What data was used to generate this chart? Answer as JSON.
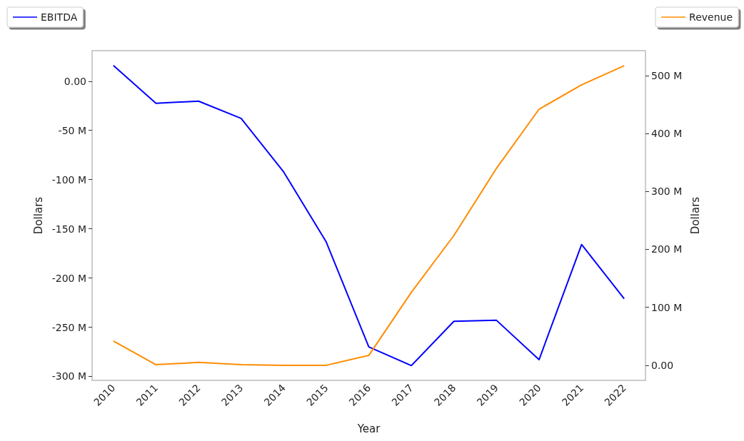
{
  "chart_data": {
    "type": "line",
    "xlabel": "Year",
    "ylabel": "Dollars",
    "y2label": "Dollars",
    "categories": [
      "2010",
      "2011",
      "2012",
      "2013",
      "2014",
      "2015",
      "2016",
      "2017",
      "2018",
      "2019",
      "2020",
      "2021",
      "2022"
    ],
    "series": [
      {
        "name": "EBITDA",
        "color": "#0000ff",
        "values": [
          16,
          -22.5,
          -20.3,
          -37.8,
          -92.2,
          -163.4,
          -270,
          -289,
          -244,
          -243,
          -283,
          -166,
          -221
        ]
      },
      {
        "name": "Revenue",
        "color": "#ff8c00",
        "axis": "y2",
        "values": [
          42,
          1,
          5,
          1,
          0,
          0,
          17,
          126,
          224,
          340,
          442,
          484,
          517
        ]
      }
    ],
    "ylim": [
      -304,
      31
    ],
    "yticks": [
      {
        "value": 0,
        "label": "0.00"
      },
      {
        "value": -50,
        "label": "-50 M"
      },
      {
        "value": -100,
        "label": "-100 M"
      },
      {
        "value": -150,
        "label": "-150 M"
      },
      {
        "value": -200,
        "label": "-200 M"
      },
      {
        "value": -250,
        "label": "-250 M"
      },
      {
        "value": -300,
        "label": "-300 M"
      }
    ],
    "y2lim": [
      -26,
      543
    ],
    "y2ticks": [
      {
        "value": 0,
        "label": "0.00"
      },
      {
        "value": 100,
        "label": "100 M"
      },
      {
        "value": 200,
        "label": "200 M"
      },
      {
        "value": 300,
        "label": "300 M"
      },
      {
        "value": 400,
        "label": "400 M"
      },
      {
        "value": 500,
        "label": "500 M"
      }
    ],
    "grid": false,
    "legend": "top",
    "marker": "none",
    "line_style": "solid"
  }
}
